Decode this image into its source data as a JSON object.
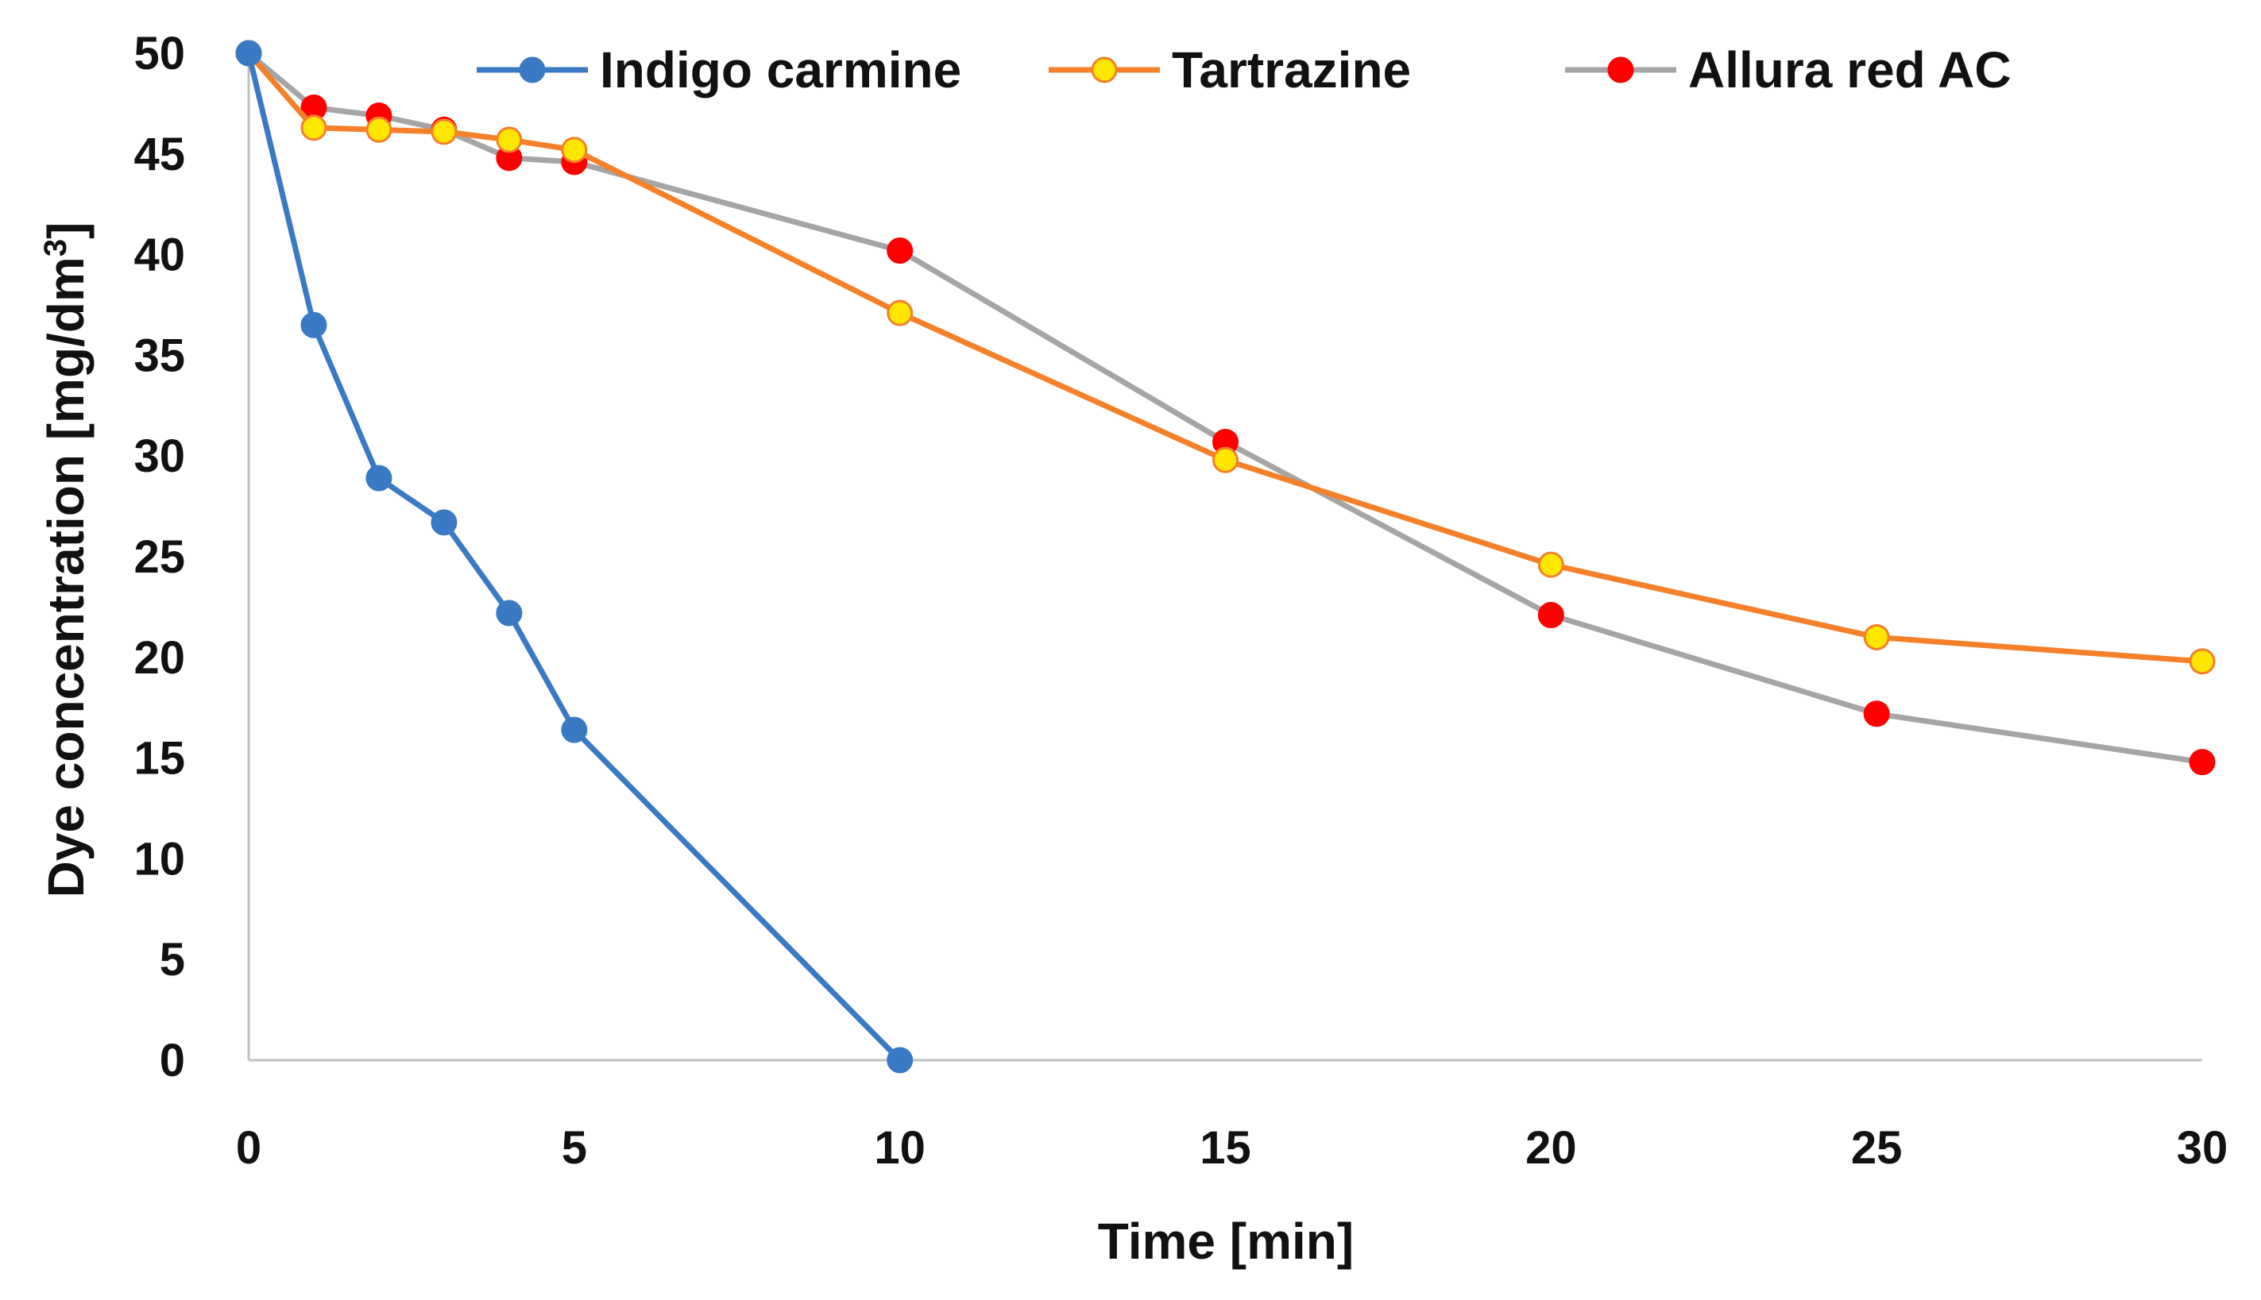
{
  "chart_data": {
    "type": "line",
    "title": "",
    "xlabel": "Time [min]",
    "ylabel_main": "Dye concentration [mg/dm",
    "ylabel_sup": "3",
    "ylabel_end": "]",
    "xlim": [
      0,
      30
    ],
    "ylim": [
      0,
      50
    ],
    "x_ticks": [
      "0",
      "5",
      "10",
      "15",
      "20",
      "25",
      "30"
    ],
    "y_ticks": [
      "0",
      "5",
      "10",
      "15",
      "20",
      "25",
      "30",
      "35",
      "40",
      "45",
      "50"
    ],
    "grid": false,
    "legend_position": "top",
    "series": [
      {
        "name": "Indigo carmine",
        "line_color": "#3a7ac4",
        "marker_fill": "#3a7ac4",
        "marker_stroke": "#3a7ac4",
        "x": [
          0,
          1,
          2,
          3,
          4,
          5,
          10
        ],
        "y": [
          50,
          36.5,
          28.9,
          26.7,
          22.2,
          16.4,
          0
        ]
      },
      {
        "name": "Tartrazine",
        "line_color": "#f5802a",
        "marker_fill": "#ffe600",
        "marker_stroke": "#f5802a",
        "x": [
          0,
          1,
          2,
          3,
          4,
          5,
          10,
          15,
          20,
          25,
          30
        ],
        "y": [
          50,
          46.3,
          46.2,
          46.1,
          45.7,
          45.2,
          37.1,
          29.8,
          24.6,
          21.0,
          19.8
        ]
      },
      {
        "name": "Allura red AC",
        "line_color": "#a5a5a5",
        "marker_fill": "#ff0000",
        "marker_stroke": "#ff0000",
        "x": [
          0,
          1,
          2,
          3,
          4,
          5,
          10,
          15,
          20,
          25,
          30
        ],
        "y": [
          50,
          47.3,
          46.9,
          46.2,
          44.8,
          44.6,
          40.2,
          30.7,
          22.1,
          17.2,
          14.8
        ]
      }
    ]
  }
}
